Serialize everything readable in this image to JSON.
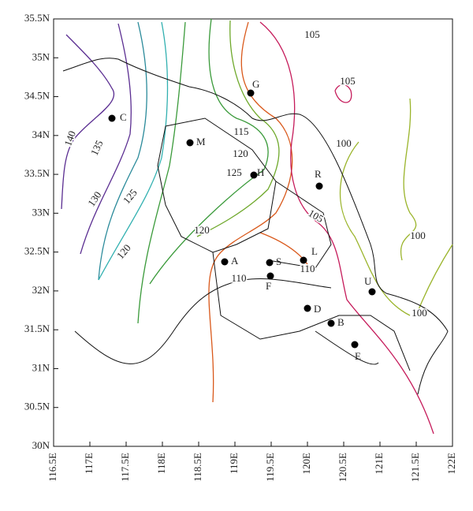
{
  "x_ticks": [
    "116.5E",
    "117E",
    "117.5E",
    "118E",
    "118.5E",
    "119E",
    "119.5E",
    "120E",
    "120.5E",
    "121E",
    "121.5E",
    "122E"
  ],
  "y_ticks": [
    "35.5N",
    "35N",
    "34.5N",
    "34N",
    "33.5N",
    "33N",
    "32.5N",
    "32N",
    "31.5N",
    "31N",
    "30.5N",
    "30N"
  ],
  "stations": [
    "A",
    "S",
    "L",
    "F",
    "D",
    "B",
    "E",
    "U",
    "R",
    "H",
    "M",
    "C",
    "G"
  ],
  "contour_labels": [
    "105",
    "105",
    "100",
    "115",
    "120",
    "125",
    "120",
    "105",
    "100",
    "110",
    "110",
    "100",
    "140",
    "135",
    "130",
    "125",
    "120"
  ]
}
